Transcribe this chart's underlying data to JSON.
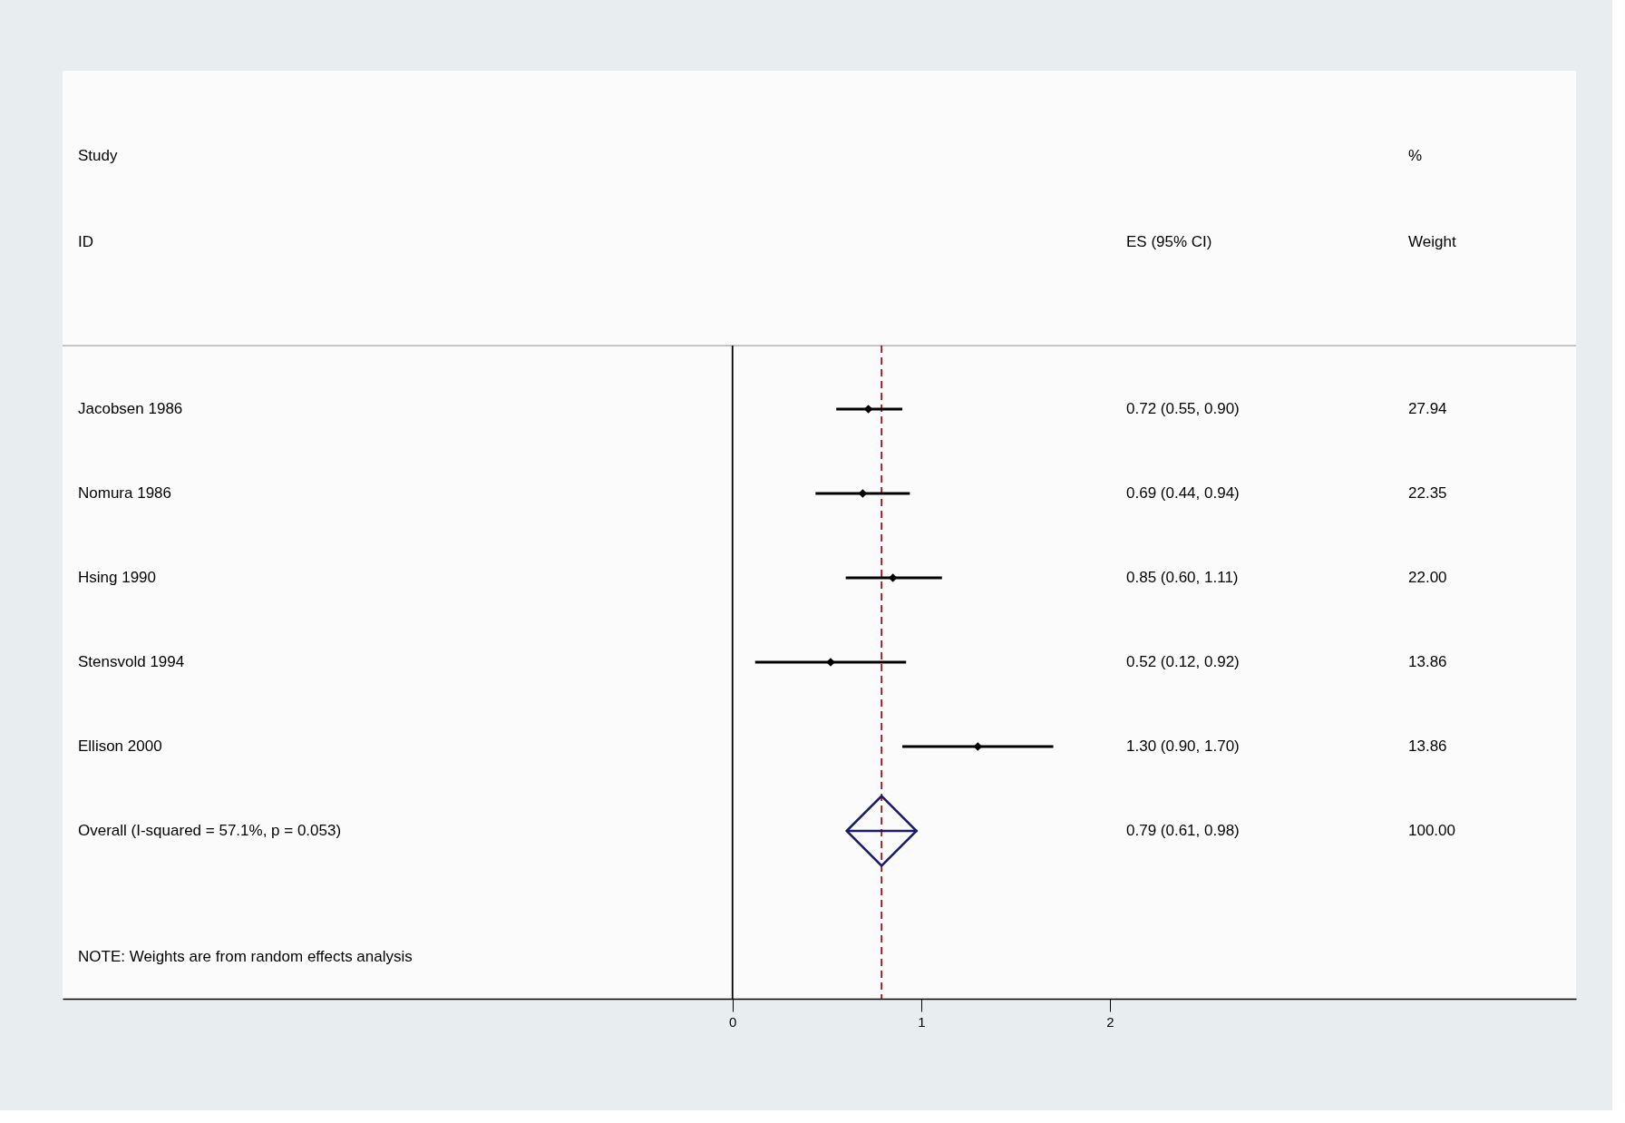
{
  "chart_data": {
    "type": "scatter",
    "orientation": "horizontal",
    "categories": [
      "Jacobsen 1986",
      "Nomura 1986",
      "Hsing 1990",
      "Stensvold 1994",
      "Ellison 2000",
      "Overall  (I-squared = 57.1%, p = 0.053)"
    ],
    "series": [
      {
        "type": "scatter",
        "marker": "diamond",
        "color": "#000000",
        "values": [
          0.72,
          0.69,
          0.85,
          0.52,
          1.3,
          null
        ],
        "errors": [
          [
            0.55,
            0.9
          ],
          [
            0.44,
            0.94
          ],
          [
            0.6,
            1.11
          ],
          [
            0.12,
            0.92
          ],
          [
            0.9,
            1.7
          ],
          null
        ]
      },
      {
        "type": "scatter",
        "marker": "diamond",
        "color": "#1c1c6b",
        "values": [
          null,
          null,
          null,
          null,
          null,
          0.79
        ],
        "errors": [
          null,
          null,
          null,
          null,
          null,
          [
            0.61,
            0.98
          ]
        ]
      }
    ],
    "xlim": [
      -3.55,
      4.47
    ],
    "xticks": [
      0,
      1,
      2
    ],
    "grid": false,
    "ref_lines": [
      {
        "axis": "x",
        "value": 0,
        "color": "#000000",
        "line_style": "solid"
      },
      {
        "axis": "x",
        "value": 0.79,
        "color": "#8b1a1a",
        "line_style": "dashed"
      }
    ],
    "annotations": [
      "Study",
      "ID",
      "ES (95% CI)",
      "%",
      "Weight",
      "NOTE: Weights are from random effects analysis",
      "0.72 (0.55, 0.90)",
      "0.69 (0.44, 0.94)",
      "0.85 (0.60, 1.11)",
      "0.52 (0.12, 0.92)",
      "1.30 (0.90, 1.70)",
      "0.79 (0.61, 0.98)",
      "27.94",
      "22.35",
      "22.00",
      "13.86",
      "13.86",
      "100.00"
    ]
  }
}
